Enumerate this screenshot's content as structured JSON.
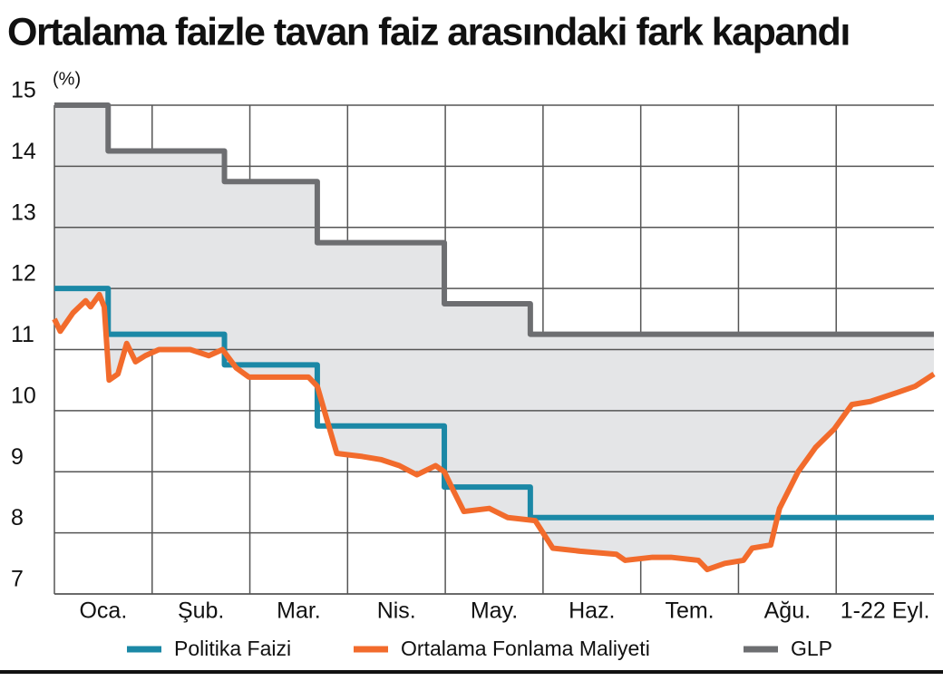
{
  "chart_data": {
    "type": "line",
    "title": "Ortalama faizle tavan faiz arasındaki fark kapandı",
    "y_unit": "(%)",
    "categories": [
      "Oca.",
      "Şub.",
      "Mar.",
      "Nis.",
      "May.",
      "Haz.",
      "Tem.",
      "Ağu.",
      "1-22 Eyl."
    ],
    "xlim": [
      0,
      9
    ],
    "ylim": [
      7,
      15
    ],
    "yticks": [
      7,
      8,
      9,
      10,
      11,
      12,
      13,
      14,
      15
    ],
    "grid": true,
    "legend": "bottom",
    "series": [
      {
        "name": "Politika Faizi",
        "color": "#1b88a6",
        "x": [
          0,
          0.55,
          0.55,
          1.74,
          1.74,
          2.69,
          2.69,
          3.99,
          3.99,
          4.87,
          4.87,
          9
        ],
        "values": [
          12,
          12,
          11.25,
          11.25,
          10.75,
          10.75,
          9.75,
          9.75,
          8.75,
          8.75,
          8.25,
          8.25
        ]
      },
      {
        "name": "Ortalama Fonlama Maliyeti",
        "color": "#f26b2c",
        "x": [
          0,
          0.06,
          0.19,
          0.32,
          0.37,
          0.46,
          0.51,
          0.56,
          0.65,
          0.74,
          0.83,
          0.93,
          1.07,
          1.39,
          1.58,
          1.72,
          1.86,
          1.99,
          2.23,
          2.6,
          2.69,
          2.78,
          2.89,
          3.15,
          3.34,
          3.53,
          3.71,
          3.9,
          3.99,
          4.08,
          4.19,
          4.45,
          4.64,
          4.92,
          5.1,
          5.38,
          5.75,
          5.84,
          6.12,
          6.31,
          6.59,
          6.68,
          6.86,
          7.05,
          7.14,
          7.33,
          7.42,
          7.61,
          7.79,
          7.98,
          8.16,
          8.35,
          8.63,
          8.81,
          9
        ],
        "values": [
          11.5,
          11.3,
          11.6,
          11.8,
          11.7,
          11.9,
          11.7,
          10.5,
          10.6,
          11.1,
          10.8,
          10.9,
          11.0,
          11.0,
          10.9,
          11.0,
          10.7,
          10.55,
          10.55,
          10.55,
          10.4,
          9.9,
          9.3,
          9.25,
          9.2,
          9.1,
          8.95,
          9.1,
          9.0,
          8.7,
          8.35,
          8.4,
          8.25,
          8.2,
          7.75,
          7.7,
          7.65,
          7.55,
          7.6,
          7.6,
          7.55,
          7.4,
          7.5,
          7.55,
          7.75,
          7.8,
          8.4,
          9.0,
          9.4,
          9.7,
          10.1,
          10.15,
          10.3,
          10.4,
          10.6
        ]
      },
      {
        "name": "GLP",
        "color": "#6d6e71",
        "x": [
          0,
          0.55,
          0.55,
          1.74,
          1.74,
          2.69,
          2.69,
          3.99,
          3.99,
          4.87,
          4.87,
          9
        ],
        "values": [
          15,
          15,
          14.25,
          14.25,
          13.75,
          13.75,
          12.75,
          12.75,
          11.75,
          11.75,
          11.25,
          11.25
        ]
      }
    ]
  }
}
